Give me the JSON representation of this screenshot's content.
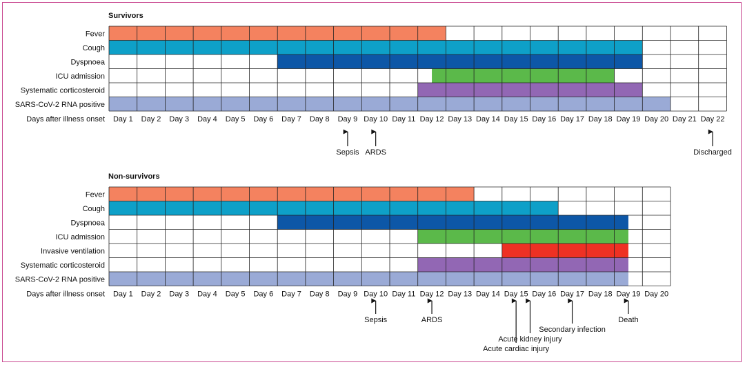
{
  "colors": {
    "fever": "#f4825f",
    "cough": "#0ea0c8",
    "dyspnoea": "#0d57a7",
    "icu": "#5bb94a",
    "invasive": "#ee3124",
    "steroid": "#9267b4",
    "rna": "#9aaad6",
    "frame": "#c8468f"
  },
  "panels": [
    {
      "title": "Survivors",
      "axis_label": "Days after illness onset",
      "days": [
        "Day 1",
        "Day 2",
        "Day 3",
        "Day 4",
        "Day 5",
        "Day 6",
        "Day 7",
        "Day 8",
        "Day 9",
        "Day 10",
        "Day 11",
        "Day 12",
        "Day 13",
        "Day 14",
        "Day 15",
        "Day 16",
        "Day 17",
        "Day 18",
        "Day 19",
        "Day 20",
        "Day 21",
        "Day 22"
      ],
      "rows": [
        {
          "label": "Fever",
          "start_day": 1,
          "end_day": 12,
          "color_key": "fever"
        },
        {
          "label": "Cough",
          "start_day": 1,
          "end_day": 19,
          "color_key": "cough"
        },
        {
          "label": "Dyspnoea",
          "start_day": 7,
          "end_day": 19,
          "color_key": "dyspnoea"
        },
        {
          "label": "ICU admission",
          "start_day": 12.5,
          "end_day": 18,
          "color_key": "icu"
        },
        {
          "label": "Systematic corticosteroid",
          "start_day": 12,
          "end_day": 19,
          "color_key": "steroid"
        },
        {
          "label": "SARS-CoV-2 RNA positive",
          "start_day": 1,
          "end_day": 20,
          "color_key": "rna"
        }
      ],
      "events": [
        {
          "label": "Sepsis",
          "day": 9,
          "level": 0
        },
        {
          "label": "ARDS",
          "day": 10,
          "level": 0
        },
        {
          "label": "Discharged",
          "day": 22,
          "level": 0
        }
      ]
    },
    {
      "title": "Non-survivors",
      "axis_label": "Days after illness onset",
      "days": [
        "Day 1",
        "Day 2",
        "Day 3",
        "Day 4",
        "Day 5",
        "Day 6",
        "Day 7",
        "Day 8",
        "Day 9",
        "Day 10",
        "Day 11",
        "Day 12",
        "Day 13",
        "Day 14",
        "Day 15",
        "Day 16",
        "Day 17",
        "Day 18",
        "Day 19",
        "Day 20"
      ],
      "rows": [
        {
          "label": "Fever",
          "start_day": 1,
          "end_day": 13,
          "color_key": "fever"
        },
        {
          "label": "Cough",
          "start_day": 1,
          "end_day": 16,
          "color_key": "cough"
        },
        {
          "label": "Dyspnoea",
          "start_day": 7,
          "end_day": 18.5,
          "color_key": "dyspnoea"
        },
        {
          "label": "ICU admission",
          "start_day": 12,
          "end_day": 18.5,
          "color_key": "icu"
        },
        {
          "label": "Invasive ventilation",
          "start_day": 15,
          "end_day": 18.5,
          "color_key": "invasive"
        },
        {
          "label": "Systematic corticosteroid",
          "start_day": 12,
          "end_day": 18.5,
          "color_key": "steroid"
        },
        {
          "label": "SARS-CoV-2 RNA positive",
          "start_day": 1,
          "end_day": 18.5,
          "color_key": "rna"
        }
      ],
      "events": [
        {
          "label": "Sepsis",
          "day": 10,
          "level": 0
        },
        {
          "label": "ARDS",
          "day": 12,
          "level": 0
        },
        {
          "label": "Death",
          "day": 19,
          "level": 0
        },
        {
          "label": "Secondary infection",
          "day": 17,
          "level": 1
        },
        {
          "label": "Acute kidney injury",
          "day": 15.5,
          "level": 2
        },
        {
          "label": "Acute cardiac injury",
          "day": 15,
          "level": 3
        }
      ]
    }
  ]
}
